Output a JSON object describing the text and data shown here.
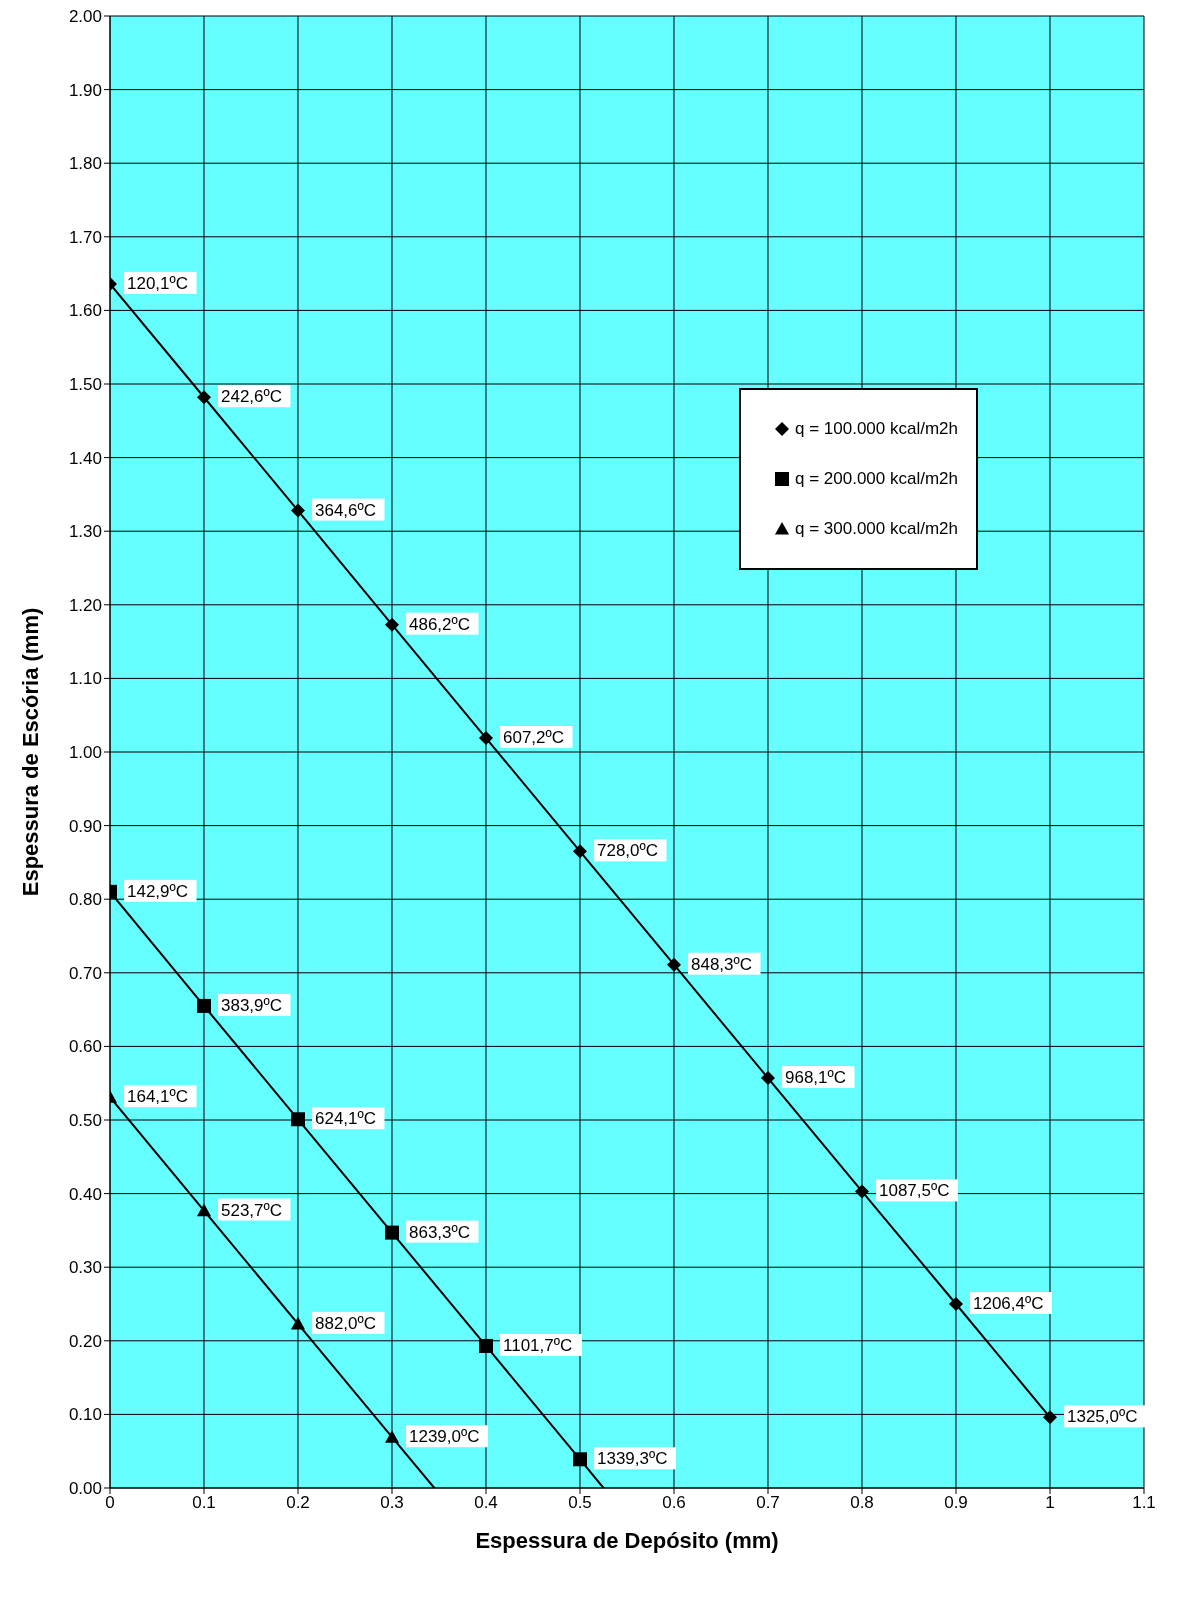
{
  "chart_data": {
    "type": "line",
    "xlabel": "Espessura de Depósito (mm)",
    "ylabel": "Espessura de Escória (mm)",
    "xlim": [
      0,
      1.1
    ],
    "xticks": [
      0,
      0.1,
      0.2,
      0.3,
      0.4,
      0.5,
      0.6,
      0.7,
      0.8,
      0.9,
      1,
      1.1
    ],
    "ylim": [
      0,
      2
    ],
    "yticks": [
      {
        "value": 0,
        "label": "0.00"
      },
      {
        "value": 0.1,
        "label": "0.10"
      },
      {
        "value": 0.2,
        "label": "0.20"
      },
      {
        "value": 0.3,
        "label": "0.30"
      },
      {
        "value": 0.4,
        "label": "0.40"
      },
      {
        "value": 0.5,
        "label": "0.50"
      },
      {
        "value": 0.6,
        "label": "0.60"
      },
      {
        "value": 0.7,
        "label": "0.70"
      },
      {
        "value": 0.8,
        "label": "0.80"
      },
      {
        "value": 0.9,
        "label": "0.90"
      },
      {
        "value": 1,
        "label": "1.00"
      },
      {
        "value": 1.1,
        "label": "1.10"
      },
      {
        "value": 1.2,
        "label": "1.20"
      },
      {
        "value": 1.3,
        "label": "1.30"
      },
      {
        "value": 1.4,
        "label": "1.40"
      },
      {
        "value": 1.5,
        "label": "1.50"
      },
      {
        "value": 1.6,
        "label": "1.60"
      },
      {
        "value": 1.7,
        "label": "1.70"
      },
      {
        "value": 1.8,
        "label": "1.80"
      },
      {
        "value": 1.9,
        "label": "1.90"
      },
      {
        "value": 2,
        "label": "2.00"
      }
    ],
    "grid": true,
    "legend": "top right",
    "annotations": [
      {
        "text": "120,1ºC",
        "x": 0,
        "y": 1.636
      },
      {
        "text": "242,6ºC",
        "x": 0.1,
        "y": 1.482
      },
      {
        "text": "364,6ºC",
        "x": 0.2,
        "y": 1.328
      },
      {
        "text": "486,2ºC",
        "x": 0.3,
        "y": 1.173
      },
      {
        "text": "607,2ºC",
        "x": 0.4,
        "y": 1.019
      },
      {
        "text": "728,0ºC",
        "x": 0.5,
        "y": 0.865
      },
      {
        "text": "848,3ºC",
        "x": 0.6,
        "y": 0.711
      },
      {
        "text": "968,1ºC",
        "x": 0.7,
        "y": 0.557
      },
      {
        "text": "1087,5ºC",
        "x": 0.8,
        "y": 0.403
      },
      {
        "text": "1206,4ºC",
        "x": 0.9,
        "y": 0.25
      },
      {
        "text": "1325,0ºC",
        "x": 1,
        "y": 0.096
      },
      {
        "text": "142,9ºC",
        "x": 0,
        "y": 0.81
      },
      {
        "text": "383,9ºC",
        "x": 0.1,
        "y": 0.655
      },
      {
        "text": "624,1ºC",
        "x": 0.2,
        "y": 0.501
      },
      {
        "text": "863,3ºC",
        "x": 0.3,
        "y": 0.347
      },
      {
        "text": "1101,7ºC",
        "x": 0.4,
        "y": 0.193
      },
      {
        "text": "1339,3ºC",
        "x": 0.5,
        "y": 0.039
      },
      {
        "text": "164,1ºC",
        "x": 0,
        "y": 0.531
      },
      {
        "text": "523,7ºC",
        "x": 0.1,
        "y": 0.377
      },
      {
        "text": "882,0ºC",
        "x": 0.2,
        "y": 0.223
      },
      {
        "text": "1239,0ºC",
        "x": 0.3,
        "y": 0.069
      }
    ],
    "series": [
      {
        "name": "q = 100.000 kcal/m2h",
        "color": "#000000",
        "marker": "diamond",
        "x": [
          0,
          0.1,
          0.2,
          0.3,
          0.4,
          0.5,
          0.6,
          0.7,
          0.8,
          0.9,
          1
        ],
        "values": [
          1.636,
          1.482,
          1.328,
          1.173,
          1.019,
          0.865,
          0.711,
          0.557,
          0.403,
          0.25,
          0.096
        ]
      },
      {
        "name": "q = 200.000 kcal/m2h",
        "color": "#000000",
        "marker": "square",
        "x": [
          0,
          0.1,
          0.2,
          0.3,
          0.4,
          0.5
        ],
        "values": [
          0.81,
          0.655,
          0.501,
          0.347,
          0.193,
          0.039
        ]
      },
      {
        "name": "q = 300.000 kcal/m2h",
        "color": "#000000",
        "marker": "triangle",
        "x": [
          0,
          0.1,
          0.2,
          0.3
        ],
        "values": [
          0.531,
          0.377,
          0.223,
          0.069
        ]
      },
      {
        "type": "line",
        "color": "#000000",
        "marker": "none",
        "x": [
          0.5,
          0.525
        ],
        "values": [
          0.039,
          0
        ]
      },
      {
        "type": "line",
        "color": "#000000",
        "marker": "none",
        "x": [
          0.3,
          0.345
        ],
        "values": [
          0.069,
          0
        ]
      }
    ]
  }
}
